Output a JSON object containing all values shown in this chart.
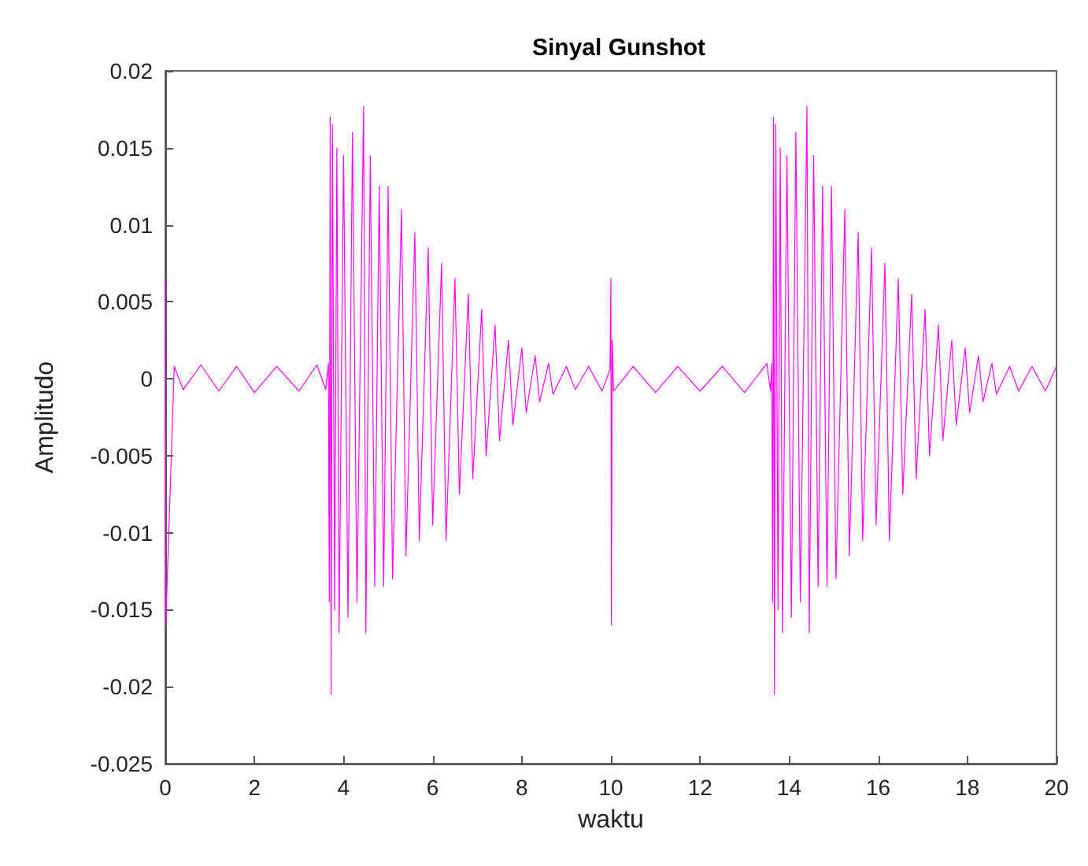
{
  "chart_data": {
    "type": "line",
    "title": "Sinyal Gunshot",
    "xlabel": "waktu",
    "ylabel": "Amplitudo",
    "xlim": [
      0,
      20
    ],
    "xticks": [
      0,
      2,
      4,
      6,
      8,
      10,
      12,
      14,
      16,
      18,
      20
    ],
    "ylim": [
      -0.025,
      0.02
    ],
    "yticks": [
      -0.025,
      -0.02,
      -0.015,
      -0.01,
      -0.005,
      0,
      0.005,
      0.01,
      0.015,
      0.02
    ],
    "grid": false,
    "marker": "none",
    "line_style": "solid",
    "series": [
      {
        "color": "#ff00ff",
        "x": [
          0,
          0.01,
          0.2,
          0.4,
          0.8,
          1.2,
          1.6,
          2.0,
          2.5,
          3.0,
          3.4,
          3.6,
          3.66,
          3.68,
          3.7,
          3.72,
          3.75,
          3.8,
          3.85,
          3.9,
          4.0,
          4.1,
          4.2,
          4.3,
          4.45,
          4.5,
          4.6,
          4.7,
          4.8,
          4.9,
          5.0,
          5.1,
          5.3,
          5.4,
          5.6,
          5.7,
          5.9,
          6.0,
          6.2,
          6.3,
          6.5,
          6.6,
          6.8,
          6.9,
          7.1,
          7.2,
          7.4,
          7.5,
          7.7,
          7.8,
          8.0,
          8.1,
          8.3,
          8.4,
          8.6,
          8.7,
          9.0,
          9.2,
          9.5,
          9.8,
          9.98,
          10.0,
          10.01,
          10.03,
          10.06,
          10.5,
          11,
          11.5,
          12,
          12.5,
          13,
          13.5,
          13.58,
          13.61,
          13.63,
          13.65,
          13.67,
          13.7,
          13.75,
          13.8,
          13.85,
          13.95,
          14.05,
          14.15,
          14.25,
          14.4,
          14.45,
          14.55,
          14.65,
          14.75,
          14.85,
          14.95,
          15.05,
          15.25,
          15.35,
          15.55,
          15.65,
          15.85,
          15.95,
          16.15,
          16.25,
          16.45,
          16.55,
          16.75,
          16.85,
          17.05,
          17.15,
          17.35,
          17.45,
          17.65,
          17.75,
          17.95,
          18.05,
          18.25,
          18.35,
          18.55,
          18.65,
          18.95,
          19.15,
          19.45,
          19.75,
          20
        ],
        "values": [
          0.0065,
          -0.016,
          0.0008,
          -0.0007,
          0.0009,
          -0.0008,
          0.0008,
          -0.0009,
          0.0008,
          -0.0008,
          0.0009,
          -0.0007,
          0.001,
          -0.0145,
          0.017,
          -0.0205,
          0.0165,
          -0.015,
          0.015,
          -0.0165,
          0.0145,
          -0.0155,
          0.016,
          -0.0145,
          0.0177,
          -0.0165,
          0.0145,
          -0.0135,
          0.0125,
          -0.0135,
          0.0125,
          -0.013,
          0.011,
          -0.0115,
          0.0095,
          -0.0105,
          0.0085,
          -0.0095,
          0.0075,
          -0.0105,
          0.0065,
          -0.0075,
          0.0055,
          -0.0065,
          0.0045,
          -0.005,
          0.0035,
          -0.004,
          0.0025,
          -0.003,
          0.002,
          -0.0022,
          0.0015,
          -0.0015,
          0.001,
          -0.001,
          0.0008,
          -0.0007,
          0.0008,
          -0.0008,
          0.0006,
          0.0065,
          -0.016,
          0.0025,
          -0.0008,
          0.0008,
          -0.0009,
          0.0008,
          -0.0008,
          0.0008,
          -0.0009,
          0.001,
          -0.0008,
          0.001,
          -0.0145,
          0.017,
          -0.0205,
          0.0165,
          -0.015,
          0.015,
          -0.0165,
          0.0145,
          -0.0155,
          0.016,
          -0.0145,
          0.0177,
          -0.0165,
          0.0145,
          -0.0135,
          0.0125,
          -0.0135,
          0.0125,
          -0.013,
          0.011,
          -0.0115,
          0.0095,
          -0.0105,
          0.0085,
          -0.0095,
          0.0075,
          -0.0105,
          0.0065,
          -0.0075,
          0.0055,
          -0.0065,
          0.0045,
          -0.005,
          0.0035,
          -0.004,
          0.0025,
          -0.003,
          0.002,
          -0.0022,
          0.0015,
          -0.0015,
          0.001,
          -0.001,
          0.0008,
          -0.0008,
          0.0008,
          -0.0008,
          0.0008
        ]
      }
    ]
  }
}
